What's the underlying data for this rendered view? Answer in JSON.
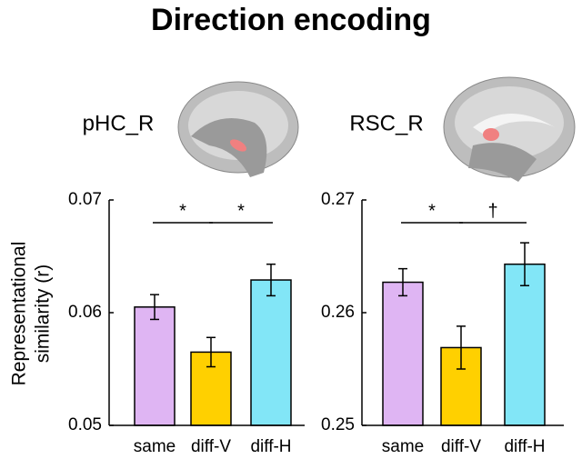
{
  "title": "Direction encoding",
  "chart_data": [
    {
      "type": "bar",
      "label": "pHC_R",
      "ylabel": [
        "Representational",
        "similarity (r)"
      ],
      "categories": [
        "same",
        "diff-V",
        "diff-H"
      ],
      "values": [
        0.0605,
        0.0565,
        0.0629
      ],
      "errors": [
        0.0011,
        0.0013,
        0.0014
      ],
      "colors": [
        "#dfb5f3",
        "#ffd000",
        "#82e6f7"
      ],
      "ylim": [
        0.05,
        0.07
      ],
      "yticks": [
        0.05,
        0.06,
        0.07
      ],
      "annotations": [
        "*",
        "*"
      ]
    },
    {
      "type": "bar",
      "label": "RSC_R",
      "categories": [
        "same",
        "diff-V",
        "diff-H"
      ],
      "values": [
        0.2627,
        0.2569,
        0.2643
      ],
      "errors": [
        0.0012,
        0.0019,
        0.0019
      ],
      "colors": [
        "#dfb5f3",
        "#ffd000",
        "#82e6f7"
      ],
      "ylim": [
        0.25,
        0.27
      ],
      "yticks": [
        0.25,
        0.26,
        0.27
      ],
      "annotations": [
        "*",
        "†"
      ]
    }
  ]
}
